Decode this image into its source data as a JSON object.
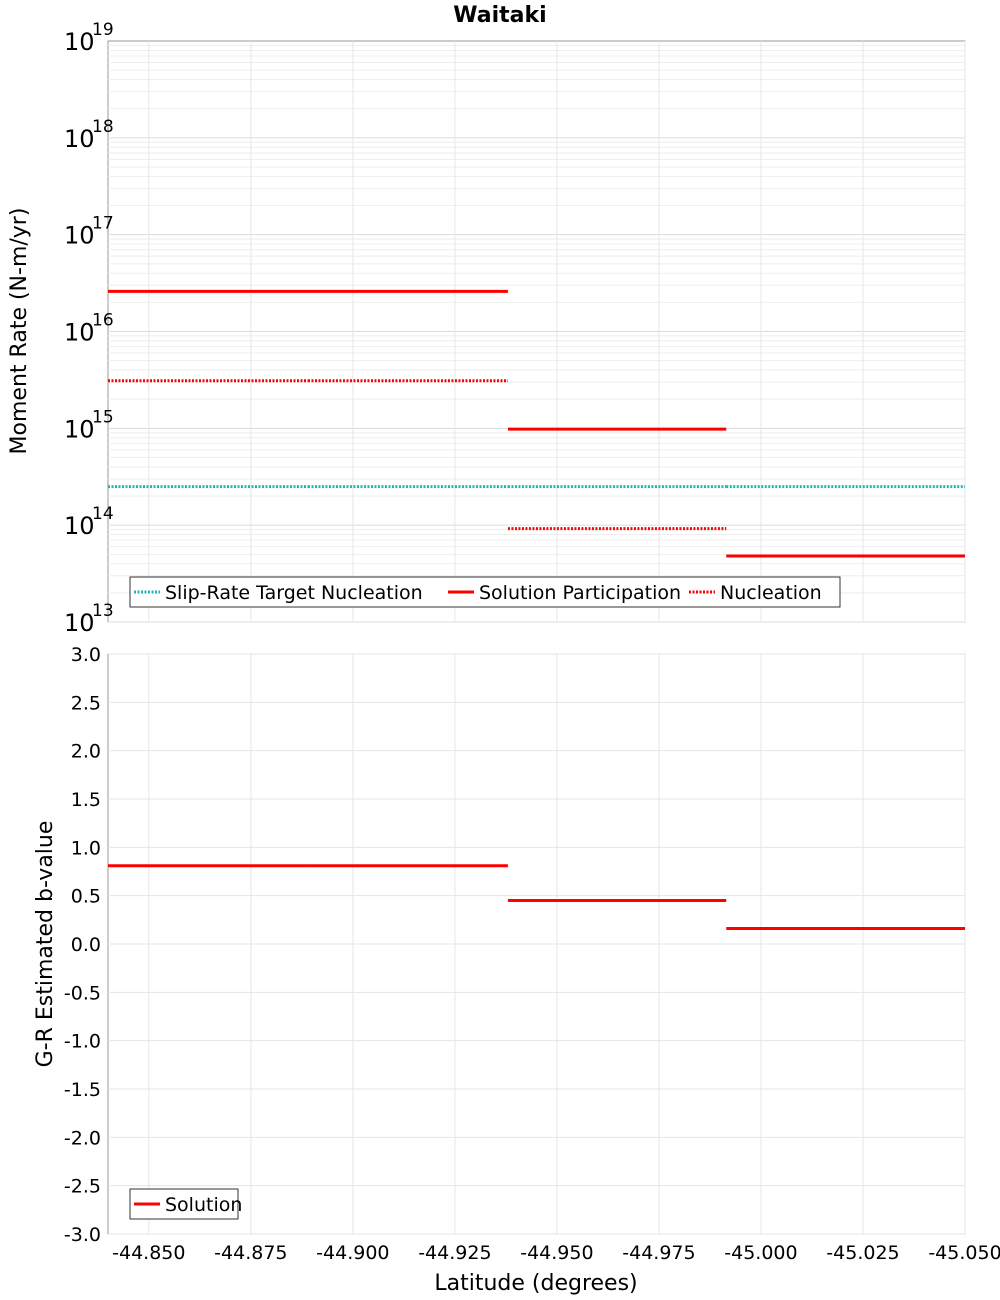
{
  "chart_data": [
    {
      "type": "line",
      "title": "Waitaki",
      "xlabel": "Latitude (degrees)",
      "ylabel": "Moment Rate (N-m/yr)",
      "yscale": "log",
      "xlim": [
        -44.84,
        -45.05
      ],
      "ylim": [
        10000000000000.0,
        1e+19
      ],
      "grid": true,
      "legend_position": "bottom-left",
      "y_tick_labels": [
        {
          "value": 10000000000000.0,
          "base": "10",
          "exp": "13"
        },
        {
          "value": 100000000000000.0,
          "base": "10",
          "exp": "14"
        },
        {
          "value": 1000000000000000.0,
          "base": "10",
          "exp": "15"
        },
        {
          "value": 1e+16,
          "base": "10",
          "exp": "16"
        },
        {
          "value": 1e+17,
          "base": "10",
          "exp": "17"
        },
        {
          "value": 1e+18,
          "base": "10",
          "exp": "18"
        },
        {
          "value": 1e+19,
          "base": "10",
          "exp": "19"
        }
      ],
      "series": [
        {
          "name": "Slip-Rate Target Nucleation",
          "color": "#1fb5b5",
          "style": "dotted",
          "segments": [
            {
              "x": [
                -44.84,
                -44.889
              ],
              "y": 250000000000000.0
            },
            {
              "x": [
                -44.889,
                -44.938
              ],
              "y": 250000000000000.0
            },
            {
              "x": [
                -44.938,
                -44.9915
              ],
              "y": 250000000000000.0
            },
            {
              "x": [
                -44.9915,
                -45.05
              ],
              "y": 250000000000000.0
            }
          ]
        },
        {
          "name": "Solution Participation",
          "color": "#ff0000",
          "style": "solid",
          "segments": [
            {
              "x": [
                -44.84,
                -44.889
              ],
              "y": 2.6e+16
            },
            {
              "x": [
                -44.889,
                -44.938
              ],
              "y": 2.6e+16
            },
            {
              "x": [
                -44.938,
                -44.9915
              ],
              "y": 980000000000000.0
            },
            {
              "x": [
                -44.9915,
                -45.05
              ],
              "y": 48000000000000.0
            }
          ]
        },
        {
          "name": "Nucleation",
          "color": "#ff0000",
          "style": "dotted",
          "segments": [
            {
              "x": [
                -44.84,
                -44.889
              ],
              "y": 3100000000000000.0
            },
            {
              "x": [
                -44.889,
                -44.938
              ],
              "y": 3100000000000000.0
            },
            {
              "x": [
                -44.938,
                -44.9915
              ],
              "y": 92000000000000.0
            }
          ]
        }
      ]
    },
    {
      "type": "line",
      "xlabel": "Latitude (degrees)",
      "ylabel": "G-R Estimated b-value",
      "xlim": [
        -44.84,
        -45.05
      ],
      "ylim": [
        -3.0,
        3.0
      ],
      "grid": true,
      "legend_position": "bottom-left",
      "x_ticks": [
        -44.85,
        -44.875,
        -44.9,
        -44.925,
        -44.95,
        -44.975,
        -45.0,
        -45.025,
        -45.05
      ],
      "x_tick_labels": [
        "-44.850",
        "-44.875",
        "-44.900",
        "-44.925",
        "-44.950",
        "-44.975",
        "-45.000",
        "-45.025",
        "-45.050"
      ],
      "y_ticks": [
        -3.0,
        -2.5,
        -2.0,
        -1.5,
        -1.0,
        -0.5,
        0.0,
        0.5,
        1.0,
        1.5,
        2.0,
        2.5,
        3.0
      ],
      "y_tick_labels": [
        "-3.0",
        "-2.5",
        "-2.0",
        "-1.5",
        "-1.0",
        "-0.5",
        "0.0",
        "0.5",
        "1.0",
        "1.5",
        "2.0",
        "2.5",
        "3.0"
      ],
      "series": [
        {
          "name": "Solution",
          "color": "#ff0000",
          "style": "solid",
          "segments": [
            {
              "x": [
                -44.84,
                -44.889
              ],
              "y": 0.81
            },
            {
              "x": [
                -44.889,
                -44.938
              ],
              "y": 0.81
            },
            {
              "x": [
                -44.938,
                -44.9915
              ],
              "y": 0.45
            },
            {
              "x": [
                -44.9915,
                -45.05
              ],
              "y": 0.16
            }
          ]
        }
      ]
    }
  ]
}
